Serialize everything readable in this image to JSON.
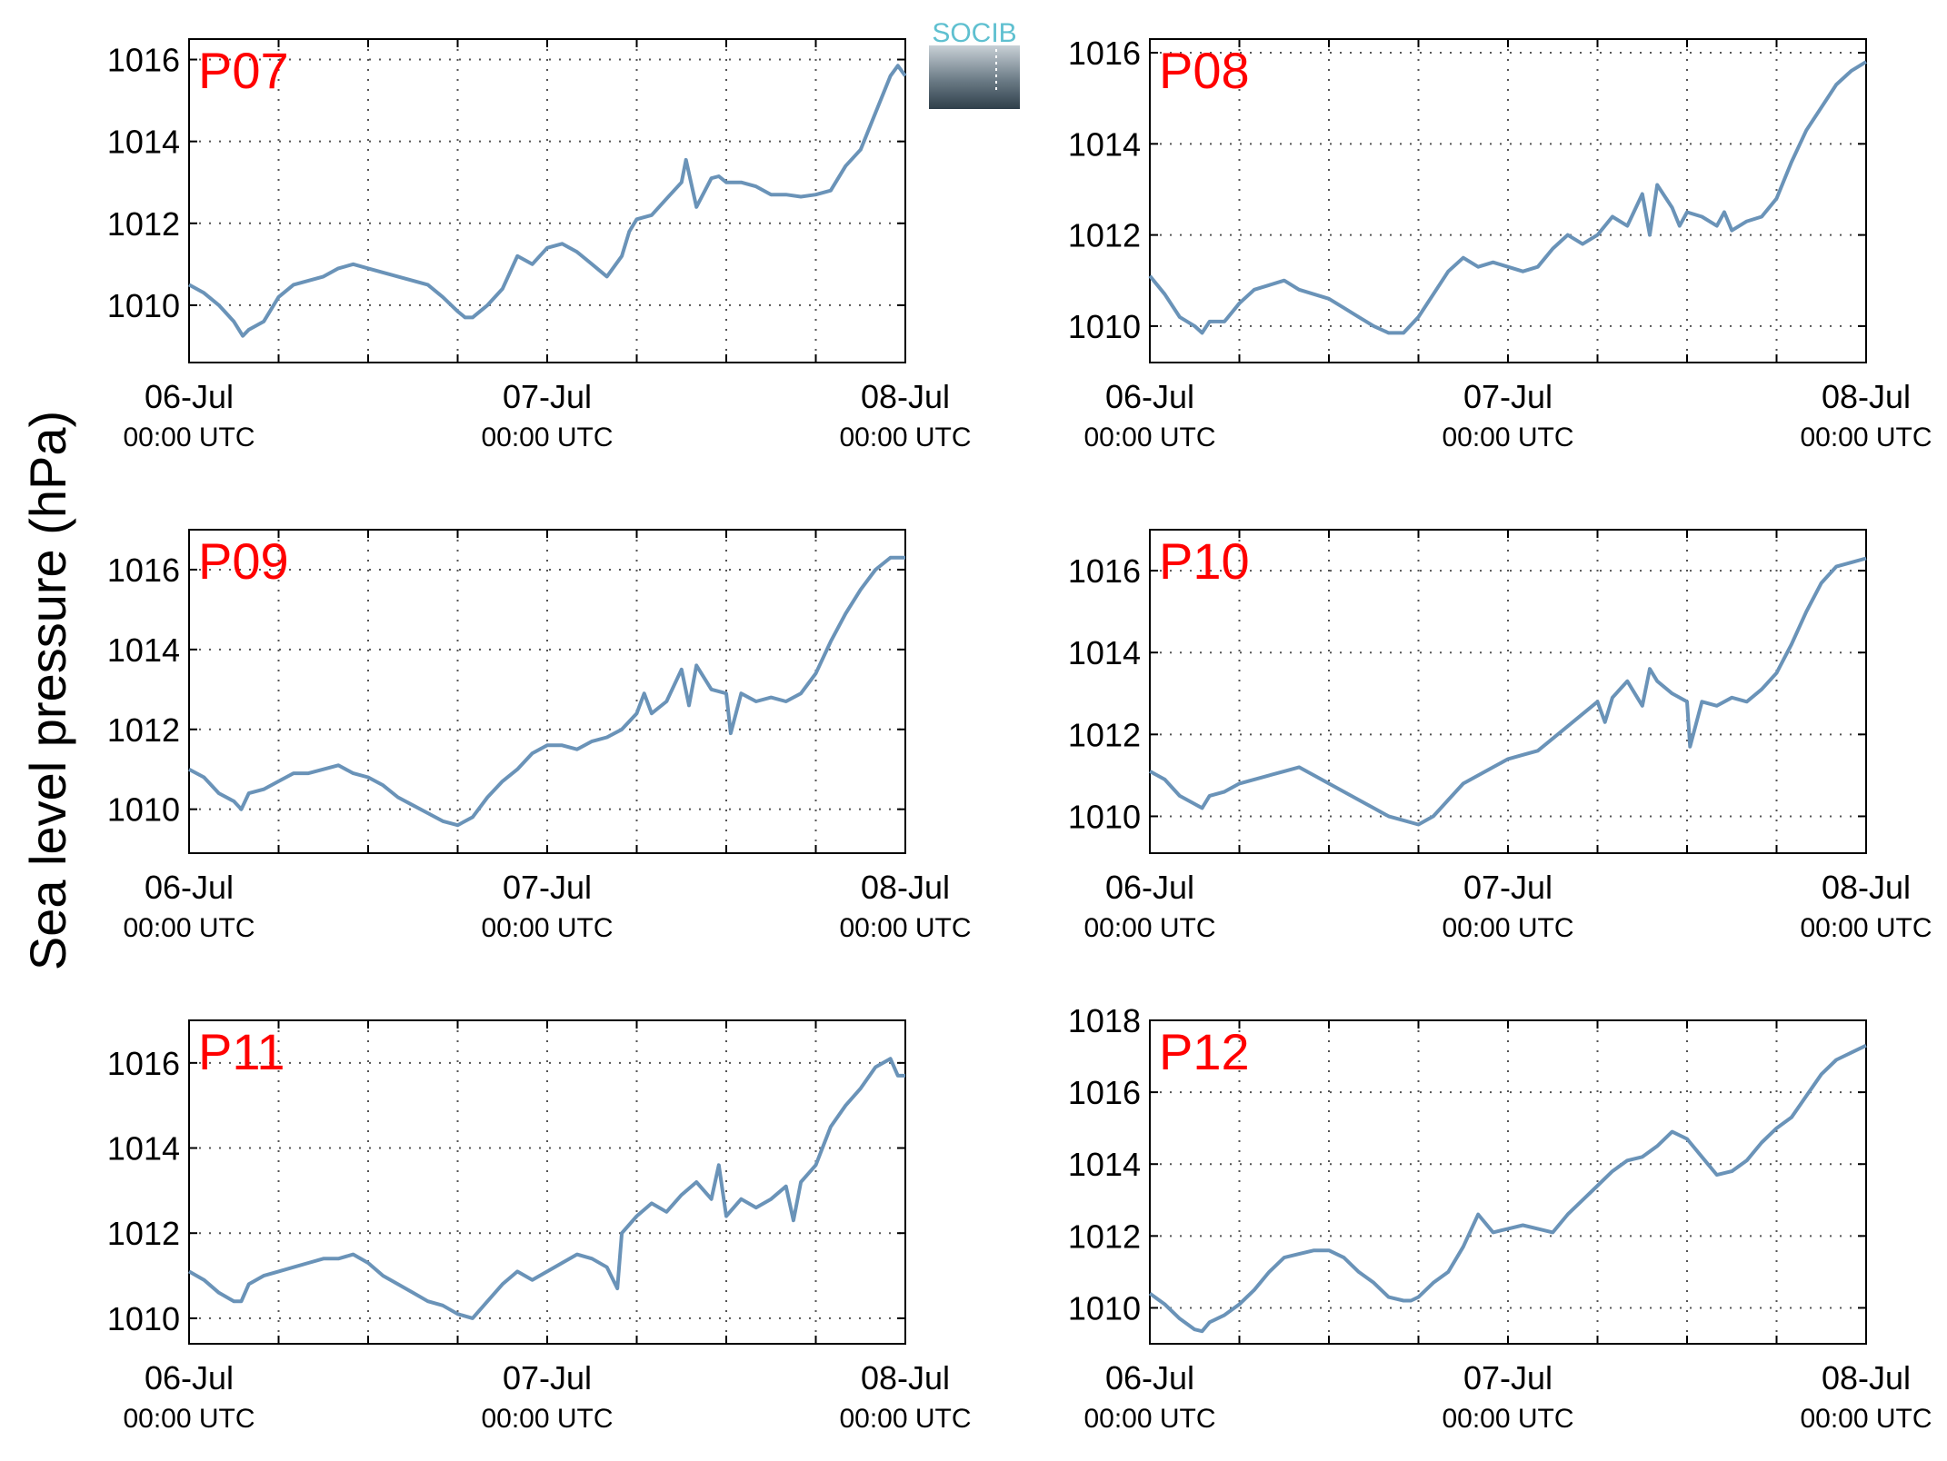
{
  "figure": {
    "ylabel": "Sea level pressure (hPa)",
    "logo_text": "SOCIB",
    "colors": {
      "line": "#6a93b8",
      "station_label": "#ff0000",
      "axis": "#000000",
      "grid": "#555555",
      "logo_text": "#5fc0d0",
      "logo_bottom": "#2f3f4a"
    }
  },
  "chart_data": [
    {
      "type": "line",
      "station": "P07",
      "x_ticks": [
        "06-Jul\n00:00 UTC",
        "07-Jul\n00:00 UTC",
        "08-Jul\n00:00 UTC"
      ],
      "x_unit": "hours since 06-Jul 00:00 UTC",
      "xlim": [
        0,
        48
      ],
      "ylim": [
        1008.6,
        1016.5
      ],
      "yticks": [
        1010,
        1012,
        1014,
        1016
      ],
      "grid": true,
      "x": [
        0,
        1,
        2,
        3,
        3.6,
        4,
        5,
        6,
        7,
        8,
        9,
        10,
        11,
        12,
        13,
        14,
        15,
        16,
        17,
        18,
        18.5,
        19,
        20,
        21,
        22,
        23,
        24,
        25,
        26,
        27,
        28,
        29,
        29.5,
        30,
        31,
        32,
        33,
        33.3,
        34,
        35,
        35.5,
        36,
        37,
        38,
        39,
        40,
        41,
        42,
        43,
        44,
        45,
        46,
        47,
        47.5,
        48
      ],
      "y": [
        1010.5,
        1010.3,
        1010.0,
        1009.6,
        1009.25,
        1009.4,
        1009.6,
        1010.2,
        1010.5,
        1010.6,
        1010.7,
        1010.9,
        1011.0,
        1010.9,
        1010.8,
        1010.7,
        1010.6,
        1010.5,
        1010.2,
        1009.85,
        1009.7,
        1009.7,
        1010.0,
        1010.4,
        1011.2,
        1011.0,
        1011.4,
        1011.5,
        1011.3,
        1011.0,
        1010.7,
        1011.2,
        1011.8,
        1012.1,
        1012.2,
        1012.6,
        1013.0,
        1013.55,
        1012.4,
        1013.1,
        1013.15,
        1013.0,
        1013.0,
        1012.9,
        1012.7,
        1012.7,
        1012.65,
        1012.7,
        1012.8,
        1013.4,
        1013.8,
        1014.7,
        1015.6,
        1015.85,
        1015.6
      ]
    },
    {
      "type": "line",
      "station": "P08",
      "x_ticks": [
        "06-Jul\n00:00 UTC",
        "07-Jul\n00:00 UTC",
        "08-Jul\n00:00 UTC"
      ],
      "x_unit": "hours since 06-Jul 00:00 UTC",
      "xlim": [
        0,
        48
      ],
      "ylim": [
        1009.2,
        1016.3
      ],
      "yticks": [
        1010,
        1012,
        1014,
        1016
      ],
      "grid": true,
      "x": [
        0,
        1,
        2,
        3,
        3.5,
        4,
        5,
        6,
        7,
        8,
        9,
        10,
        11,
        12,
        13,
        14,
        15,
        16,
        17,
        18,
        19,
        20,
        21,
        22,
        23,
        24,
        25,
        26,
        27,
        28,
        29,
        30,
        31,
        32,
        33,
        33.5,
        34,
        35,
        35.5,
        36,
        37,
        38,
        38.5,
        39,
        40,
        41,
        42,
        43,
        44,
        45,
        46,
        47,
        48
      ],
      "y": [
        1011.1,
        1010.7,
        1010.2,
        1010.0,
        1009.85,
        1010.1,
        1010.1,
        1010.5,
        1010.8,
        1010.9,
        1011.0,
        1010.8,
        1010.7,
        1010.6,
        1010.4,
        1010.2,
        1010.0,
        1009.85,
        1009.85,
        1010.2,
        1010.7,
        1011.2,
        1011.5,
        1011.3,
        1011.4,
        1011.3,
        1011.2,
        1011.3,
        1011.7,
        1012.0,
        1011.8,
        1012.0,
        1012.4,
        1012.2,
        1012.9,
        1012.0,
        1013.1,
        1012.6,
        1012.2,
        1012.5,
        1012.4,
        1012.2,
        1012.5,
        1012.1,
        1012.3,
        1012.4,
        1012.8,
        1013.6,
        1014.3,
        1014.8,
        1015.3,
        1015.6,
        1015.8
      ]
    },
    {
      "type": "line",
      "station": "P09",
      "x_ticks": [
        "06-Jul\n00:00 UTC",
        "07-Jul\n00:00 UTC",
        "08-Jul\n00:00 UTC"
      ],
      "x_unit": "hours since 06-Jul 00:00 UTC",
      "xlim": [
        0,
        48
      ],
      "ylim": [
        1008.9,
        1017.0
      ],
      "yticks": [
        1010,
        1012,
        1014,
        1016
      ],
      "grid": true,
      "x": [
        0,
        1,
        2,
        3,
        3.5,
        4,
        5,
        6,
        7,
        8,
        9,
        10,
        11,
        12,
        13,
        14,
        15,
        16,
        17,
        18,
        19,
        20,
        21,
        22,
        23,
        24,
        25,
        26,
        27,
        28,
        29,
        30,
        30.5,
        31,
        32,
        33,
        33.5,
        34,
        35,
        36,
        36.3,
        37,
        38,
        39,
        40,
        41,
        42,
        43,
        44,
        45,
        46,
        47,
        48
      ],
      "y": [
        1011.0,
        1010.8,
        1010.4,
        1010.2,
        1010.0,
        1010.4,
        1010.5,
        1010.7,
        1010.9,
        1010.9,
        1011.0,
        1011.1,
        1010.9,
        1010.8,
        1010.6,
        1010.3,
        1010.1,
        1009.9,
        1009.7,
        1009.6,
        1009.8,
        1010.3,
        1010.7,
        1011.0,
        1011.4,
        1011.6,
        1011.6,
        1011.5,
        1011.7,
        1011.8,
        1012.0,
        1012.4,
        1012.9,
        1012.4,
        1012.7,
        1013.5,
        1012.6,
        1013.6,
        1013.0,
        1012.9,
        1011.9,
        1012.9,
        1012.7,
        1012.8,
        1012.7,
        1012.9,
        1013.4,
        1014.2,
        1014.9,
        1015.5,
        1016.0,
        1016.3,
        1016.3
      ]
    },
    {
      "type": "line",
      "station": "P10",
      "x_ticks": [
        "06-Jul\n00:00 UTC",
        "07-Jul\n00:00 UTC",
        "08-Jul\n00:00 UTC"
      ],
      "x_unit": "hours since 06-Jul 00:00 UTC",
      "xlim": [
        0,
        48
      ],
      "ylim": [
        1009.1,
        1017.0
      ],
      "yticks": [
        1010,
        1012,
        1014,
        1016
      ],
      "grid": true,
      "x": [
        0,
        1,
        2,
        3,
        3.5,
        4,
        5,
        6,
        7,
        8,
        9,
        10,
        11,
        12,
        13,
        14,
        15,
        16,
        17,
        18,
        19,
        20,
        21,
        22,
        23,
        24,
        25,
        26,
        27,
        28,
        29,
        30,
        30.5,
        31,
        32,
        33,
        33.5,
        34,
        35,
        36,
        36.2,
        37,
        38,
        39,
        40,
        41,
        42,
        43,
        44,
        45,
        46,
        47,
        48
      ],
      "y": [
        1011.1,
        1010.9,
        1010.5,
        1010.3,
        1010.2,
        1010.5,
        1010.6,
        1010.8,
        1010.9,
        1011.0,
        1011.1,
        1011.2,
        1011.0,
        1010.8,
        1010.6,
        1010.4,
        1010.2,
        1010.0,
        1009.9,
        1009.8,
        1010.0,
        1010.4,
        1010.8,
        1011.0,
        1011.2,
        1011.4,
        1011.5,
        1011.6,
        1011.9,
        1012.2,
        1012.5,
        1012.8,
        1012.3,
        1012.9,
        1013.3,
        1012.7,
        1013.6,
        1013.3,
        1013.0,
        1012.8,
        1011.7,
        1012.8,
        1012.7,
        1012.9,
        1012.8,
        1013.1,
        1013.5,
        1014.2,
        1015.0,
        1015.7,
        1016.1,
        1016.2,
        1016.3
      ]
    },
    {
      "type": "line",
      "station": "P11",
      "x_ticks": [
        "06-Jul\n00:00 UTC",
        "07-Jul\n00:00 UTC",
        "08-Jul\n00:00 UTC"
      ],
      "x_unit": "hours since 06-Jul 00:00 UTC",
      "xlim": [
        0,
        48
      ],
      "ylim": [
        1009.4,
        1017.0
      ],
      "yticks": [
        1010,
        1012,
        1014,
        1016
      ],
      "grid": true,
      "x": [
        0,
        1,
        2,
        3,
        3.5,
        4,
        5,
        6,
        7,
        8,
        9,
        10,
        11,
        12,
        13,
        14,
        15,
        16,
        17,
        18,
        19,
        20,
        21,
        22,
        23,
        24,
        25,
        26,
        27,
        28,
        28.7,
        29,
        30,
        31,
        32,
        33,
        34,
        35,
        35.5,
        36,
        37,
        38,
        39,
        40,
        40.5,
        41,
        42,
        43,
        44,
        45,
        46,
        47,
        47.5,
        48
      ],
      "y": [
        1011.1,
        1010.9,
        1010.6,
        1010.4,
        1010.4,
        1010.8,
        1011.0,
        1011.1,
        1011.2,
        1011.3,
        1011.4,
        1011.4,
        1011.5,
        1011.3,
        1011.0,
        1010.8,
        1010.6,
        1010.4,
        1010.3,
        1010.1,
        1010.0,
        1010.4,
        1010.8,
        1011.1,
        1010.9,
        1011.1,
        1011.3,
        1011.5,
        1011.4,
        1011.2,
        1010.7,
        1012.0,
        1012.4,
        1012.7,
        1012.5,
        1012.9,
        1013.2,
        1012.8,
        1013.6,
        1012.4,
        1012.8,
        1012.6,
        1012.8,
        1013.1,
        1012.3,
        1013.2,
        1013.6,
        1014.5,
        1015.0,
        1015.4,
        1015.9,
        1016.1,
        1015.7,
        1015.7
      ]
    },
    {
      "type": "line",
      "station": "P12",
      "x_ticks": [
        "06-Jul\n00:00 UTC",
        "07-Jul\n00:00 UTC",
        "08-Jul\n00:00 UTC"
      ],
      "x_unit": "hours since 06-Jul 00:00 UTC",
      "xlim": [
        0,
        48
      ],
      "ylim": [
        1009.0,
        1018.0
      ],
      "yticks": [
        1010,
        1012,
        1014,
        1016,
        1018
      ],
      "grid": true,
      "x": [
        0,
        1,
        2,
        3,
        3.5,
        4,
        5,
        6,
        7,
        8,
        9,
        10,
        11,
        12,
        13,
        14,
        15,
        16,
        17,
        17.5,
        18,
        19,
        20,
        21,
        22,
        23,
        24,
        25,
        26,
        27,
        28,
        29,
        30,
        31,
        32,
        33,
        34,
        35,
        36,
        37,
        38,
        39,
        40,
        41,
        42,
        43,
        44,
        45,
        46,
        47,
        48
      ],
      "y": [
        1010.4,
        1010.1,
        1009.7,
        1009.4,
        1009.35,
        1009.6,
        1009.8,
        1010.1,
        1010.5,
        1011.0,
        1011.4,
        1011.5,
        1011.6,
        1011.6,
        1011.4,
        1011.0,
        1010.7,
        1010.3,
        1010.2,
        1010.2,
        1010.3,
        1010.7,
        1011.0,
        1011.7,
        1012.6,
        1012.1,
        1012.2,
        1012.3,
        1012.2,
        1012.1,
        1012.6,
        1013.0,
        1013.4,
        1013.8,
        1014.1,
        1014.2,
        1014.5,
        1014.9,
        1014.7,
        1014.2,
        1013.7,
        1013.8,
        1014.1,
        1014.6,
        1015.0,
        1015.3,
        1015.9,
        1016.5,
        1016.9,
        1017.1,
        1017.3
      ]
    }
  ]
}
